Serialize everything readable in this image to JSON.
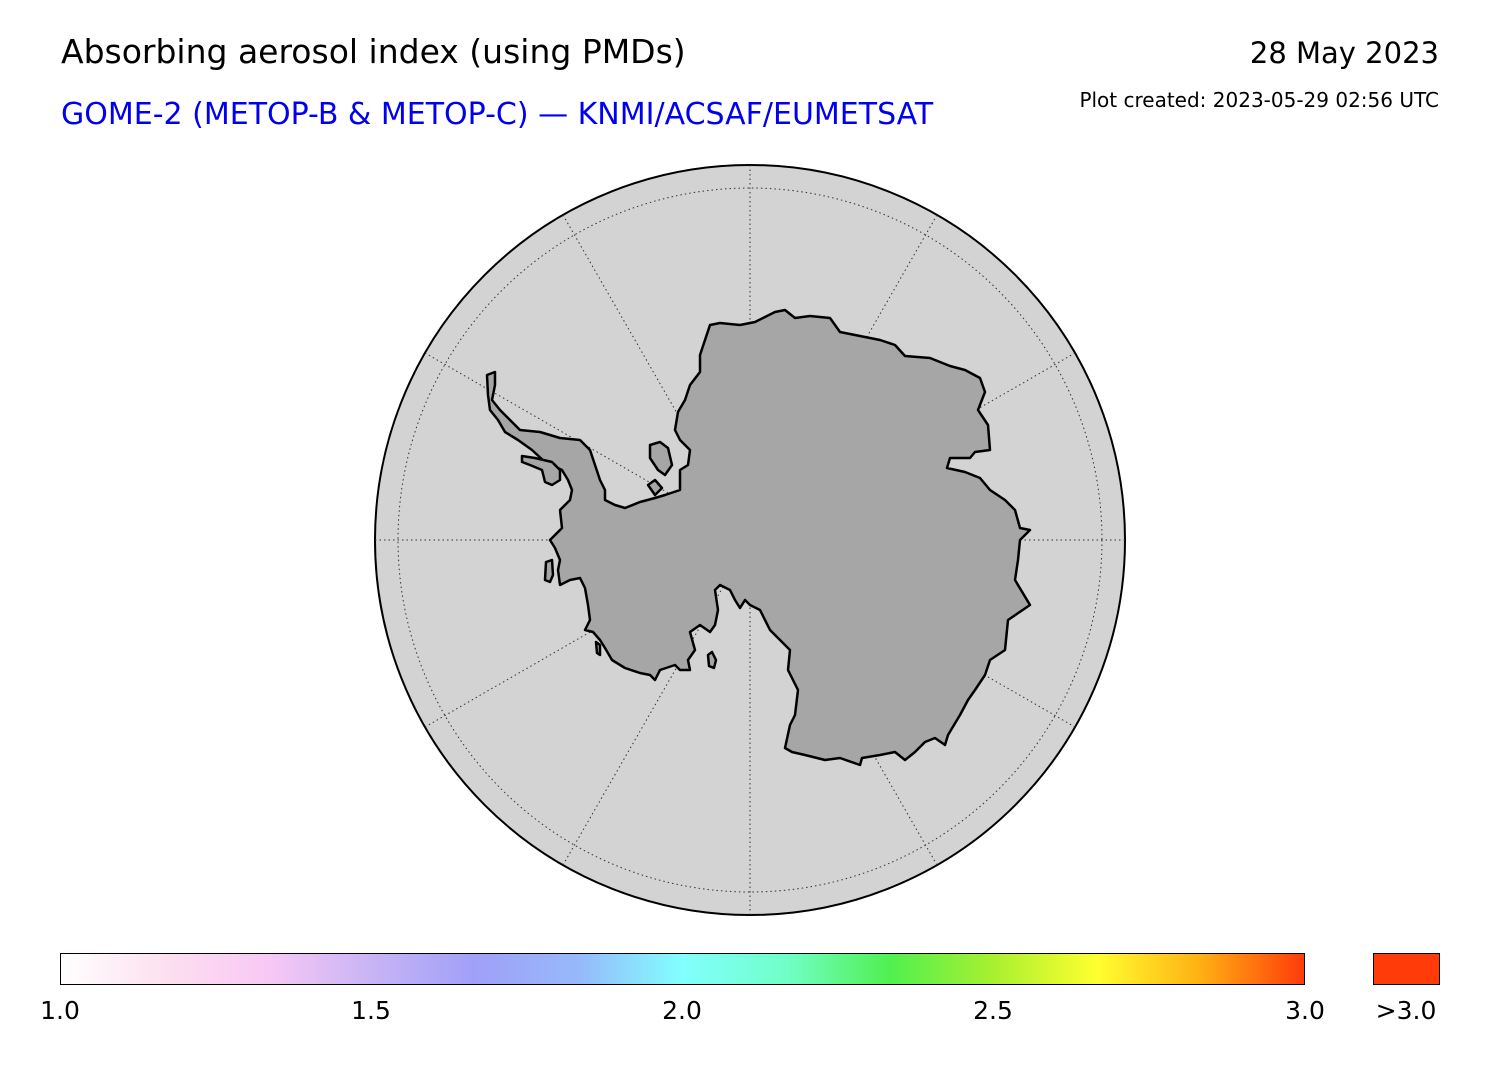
{
  "title": "Absorbing aerosol index (using PMDs)",
  "subtitle": "GOME-2 (METOP-B & METOP-C) — KNMI/ACSAF/EUMETSAT",
  "date": "28 May 2023",
  "created": "Plot created: 2023-05-29 02:56 UTC",
  "map": {
    "projection": "south-polar-stereographic",
    "ocean_color": "#d3d3d3",
    "land_color": "#a6a6a6",
    "coastline_color": "#000000",
    "graticule": "dotted",
    "aerosol_pixels_shown": "none"
  },
  "colorbar": {
    "min": 1.0,
    "max": 3.0,
    "ticks": [
      "1.0",
      "1.5",
      "2.0",
      "2.5",
      "3.0"
    ],
    "over_label": ">3.0",
    "over_color": "#ff3b0a",
    "stops": [
      "#ffffff",
      "#fde0ef",
      "#f8c8f5",
      "#c8b4f5",
      "#a0a0f8",
      "#96b9fa",
      "#82ffff",
      "#70ffc8",
      "#50f050",
      "#a8f030",
      "#ffff30",
      "#ffb014",
      "#ff3b0a"
    ]
  }
}
